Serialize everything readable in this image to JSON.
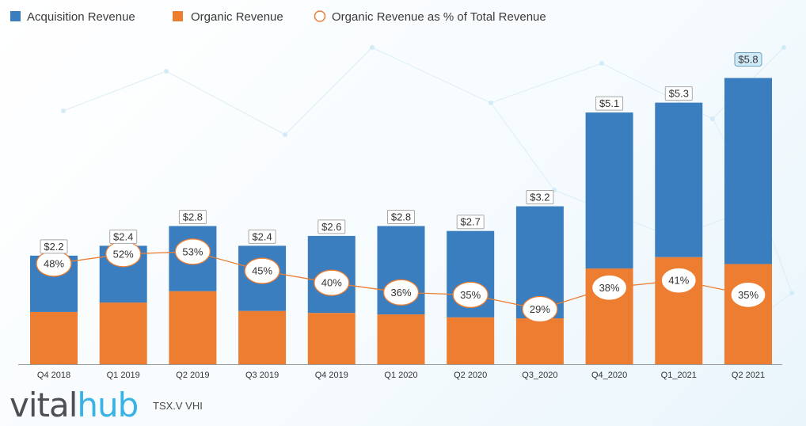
{
  "chart_data": {
    "type": "bar",
    "stacked": true,
    "categories": [
      "Q4 2018",
      "Q1 2019",
      "Q2 2019",
      "Q3 2019",
      "Q4 2019",
      "Q1 2020",
      "Q2 2020",
      "Q3_2020",
      "Q4_2020",
      "Q1_2021",
      "Q2 2021"
    ],
    "series": [
      {
        "name": "Organic Revenue",
        "color": "#ed7d31",
        "values": [
          1.06,
          1.25,
          1.48,
          1.08,
          1.04,
          1.01,
          0.95,
          0.93,
          1.94,
          2.17,
          2.03
        ]
      },
      {
        "name": "Acquisition Revenue",
        "color": "#3a7ebf",
        "values": [
          1.14,
          1.15,
          1.32,
          1.32,
          1.56,
          1.79,
          1.75,
          2.27,
          3.16,
          3.13,
          3.77
        ]
      }
    ],
    "totals": [
      "$2.2",
      "$2.4",
      "$2.8",
      "$2.4",
      "$2.6",
      "$2.8",
      "$2.7",
      "$3.2",
      "$5.1",
      "$5.3",
      "$5.8"
    ],
    "total_values": [
      2.2,
      2.4,
      2.8,
      2.4,
      2.6,
      2.8,
      2.7,
      3.2,
      5.1,
      5.3,
      5.8
    ],
    "pct_series": {
      "name": "Organic Revenue as % of Total Revenue",
      "color": "#ed7d31",
      "labels": [
        "48%",
        "52%",
        "53%",
        "45%",
        "40%",
        "36%",
        "35%",
        "29%",
        "38%",
        "41%",
        "35%"
      ],
      "values": [
        48,
        52,
        53,
        45,
        40,
        36,
        35,
        29,
        38,
        41,
        35
      ]
    },
    "legend_order": [
      "Acquisition Revenue",
      "Organic Revenue",
      "Organic Revenue as % of Total Revenue"
    ],
    "legend_position": "top-left",
    "highlight_index": 10,
    "ylim": [
      0,
      6.0
    ],
    "title": "",
    "xlabel": "",
    "ylabel": "",
    "grid": false
  },
  "footer": {
    "brand_part1": "vital",
    "brand_part2": "hub",
    "ticker": "TSX.V VHI"
  }
}
